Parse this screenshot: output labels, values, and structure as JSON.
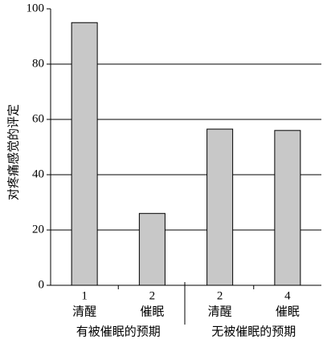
{
  "chart_data": {
    "type": "bar",
    "y_label": "对疼痛感觉的评定",
    "categories": [
      "1",
      "2",
      "2",
      "4"
    ],
    "conditions": [
      "清醒",
      "催眠",
      "清醒",
      "催眠"
    ],
    "groups": [
      "有被催眠的预期",
      "无被催眠的预期"
    ],
    "values": [
      95,
      26,
      56.5,
      56
    ],
    "color": "#c8c8c8",
    "ylim": [
      0,
      100
    ],
    "yticks": [
      0,
      20,
      40,
      60,
      80,
      100
    ],
    "grid": true
  }
}
